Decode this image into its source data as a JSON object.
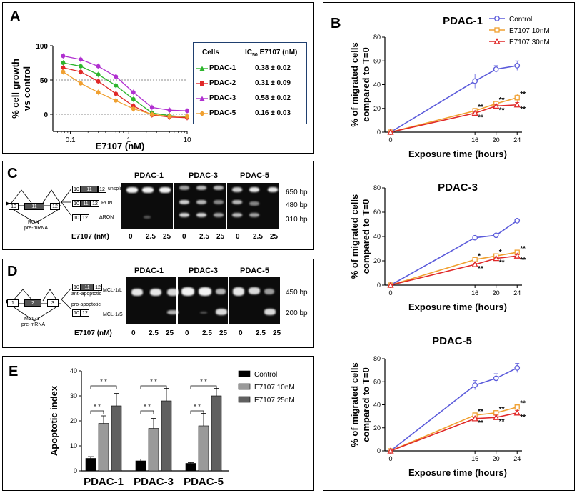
{
  "panels": {
    "A": "A",
    "B": "B",
    "C": "C",
    "D": "D",
    "E": "E"
  },
  "colors": {
    "control": "#5b5bdb",
    "e10": "#f0a030",
    "e30": "#e02828",
    "pdac1": "#2db52d",
    "pdac2": "#e02828",
    "pdac3": "#b030d0",
    "pdac5": "#f0a030",
    "bar_control": "#000000",
    "bar_e10": "#9a9a9a",
    "bar_e25": "#606060"
  },
  "chart_data": [
    {
      "id": "A",
      "type": "line",
      "ylabel": "% cell growth vs control",
      "ylabel_lines": [
        "% cell growth",
        "vs control"
      ],
      "xlabel": "E7107 (nM)",
      "xscale": "log",
      "xlim": [
        0.05,
        10
      ],
      "ylim": [
        -25,
        100
      ],
      "yticks": [
        0,
        50,
        100
      ],
      "xticks": [
        0.1,
        1,
        10
      ],
      "xtick_labels": [
        "0.1",
        "1",
        "10"
      ],
      "ref_lines": [
        0,
        50
      ],
      "x": [
        0.075,
        0.15,
        0.3,
        0.6,
        1.2,
        2.5,
        5,
        10
      ],
      "series": [
        {
          "name": "PDAC-1",
          "values": [
            75,
            70,
            58,
            42,
            22,
            2,
            -2,
            -4
          ]
        },
        {
          "name": "PDAC-2",
          "values": [
            68,
            62,
            48,
            30,
            12,
            -1,
            -4,
            -5
          ]
        },
        {
          "name": "PDAC-3",
          "values": [
            85,
            80,
            70,
            55,
            32,
            10,
            6,
            5
          ]
        },
        {
          "name": "PDAC-5",
          "values": [
            62,
            45,
            32,
            20,
            8,
            0,
            -3,
            -3
          ]
        }
      ],
      "table": {
        "header_cells": "Cells",
        "header_ic": "IC",
        "header_ic_sub": "50",
        "header_ic_rest": " E7107 (nM)",
        "rows": [
          {
            "cell": "PDAC-1",
            "ic50": "0.38 ± 0.02"
          },
          {
            "cell": "PDAC-2",
            "ic50": "0.31 ± 0.09"
          },
          {
            "cell": "PDAC-3",
            "ic50": "0.58 ± 0.02"
          },
          {
            "cell": "PDAC-5",
            "ic50": "0.16 ± 0.03"
          }
        ]
      }
    },
    {
      "id": "B1",
      "type": "line",
      "title": "PDAC-1",
      "ylabel_lines": [
        "% of migrated cells",
        "compared to T=0"
      ],
      "xlabel": "Exposure time (hours)",
      "x": [
        0,
        16,
        20,
        24
      ],
      "xticks": [
        0,
        16,
        20,
        24
      ],
      "ylim": [
        0,
        80
      ],
      "yticks": [
        0,
        20,
        40,
        60,
        80
      ],
      "legend": [
        "Control",
        "E7107 10nM",
        "E7107 30nM"
      ],
      "series": [
        {
          "name": "Control",
          "values": [
            0,
            43,
            53,
            56
          ],
          "err": [
            0,
            6,
            3,
            4
          ]
        },
        {
          "name": "E7107 10nM",
          "values": [
            0,
            18,
            24,
            29
          ],
          "err": [
            0,
            2,
            2,
            3
          ]
        },
        {
          "name": "E7107 30nM",
          "values": [
            0,
            16,
            22,
            23
          ],
          "err": [
            0,
            1,
            1,
            2
          ]
        }
      ],
      "stars": [
        {
          "x": 16,
          "y": 18,
          "label": "**"
        },
        {
          "x": 20,
          "y": 24,
          "label": "**"
        },
        {
          "x": 24,
          "y": 29,
          "label": "**"
        },
        {
          "x": 16,
          "y": 16,
          "label": "**"
        },
        {
          "x": 20,
          "y": 22,
          "label": "**"
        },
        {
          "x": 24,
          "y": 23,
          "label": "**"
        }
      ]
    },
    {
      "id": "B2",
      "type": "line",
      "title": "PDAC-3",
      "ylabel_lines": [
        "% of migrated cells",
        "compared to T=0"
      ],
      "xlabel": "Exposure time (hours)",
      "x": [
        0,
        16,
        20,
        24
      ],
      "xticks": [
        0,
        16,
        20,
        24
      ],
      "ylim": [
        0,
        80
      ],
      "yticks": [
        0,
        20,
        40,
        60,
        80
      ],
      "series": [
        {
          "name": "Control",
          "values": [
            0,
            39,
            41,
            53
          ],
          "err": [
            0,
            1,
            1,
            1
          ]
        },
        {
          "name": "E7107 10nM",
          "values": [
            0,
            21,
            24,
            27
          ],
          "err": [
            0,
            1,
            1,
            1
          ]
        },
        {
          "name": "E7107 30nM",
          "values": [
            0,
            17,
            22,
            24
          ],
          "err": [
            0,
            1,
            1,
            1
          ]
        }
      ],
      "stars": [
        {
          "x": 16,
          "y": 21,
          "label": "*"
        },
        {
          "x": 20,
          "y": 24,
          "label": "*"
        },
        {
          "x": 24,
          "y": 27,
          "label": "**"
        },
        {
          "x": 16,
          "y": 17,
          "label": "**"
        },
        {
          "x": 20,
          "y": 22,
          "label": "**"
        },
        {
          "x": 24,
          "y": 24,
          "label": "**"
        }
      ]
    },
    {
      "id": "B3",
      "type": "line",
      "title": "PDAC-5",
      "ylabel_lines": [
        "% of migrated cells",
        "compared to T=0"
      ],
      "xlabel": "Exposure time (hours)",
      "x": [
        0,
        16,
        20,
        24
      ],
      "xticks": [
        0,
        16,
        20,
        24
      ],
      "ylim": [
        0,
        80
      ],
      "yticks": [
        0,
        20,
        40,
        60,
        80
      ],
      "series": [
        {
          "name": "Control",
          "values": [
            0,
            57,
            63,
            72
          ],
          "err": [
            0,
            4,
            4,
            4
          ]
        },
        {
          "name": "E7107 10nM",
          "values": [
            0,
            31,
            33,
            38
          ],
          "err": [
            0,
            2,
            2,
            2
          ]
        },
        {
          "name": "E7107 30nM",
          "values": [
            0,
            28,
            29,
            33
          ],
          "err": [
            0,
            1,
            2,
            2
          ]
        }
      ],
      "stars": [
        {
          "x": 16,
          "y": 31,
          "label": "**"
        },
        {
          "x": 20,
          "y": 33,
          "label": "**"
        },
        {
          "x": 24,
          "y": 38,
          "label": "**"
        },
        {
          "x": 16,
          "y": 28,
          "label": "**"
        },
        {
          "x": 20,
          "y": 29,
          "label": "**"
        },
        {
          "x": 24,
          "y": 33,
          "label": "**"
        }
      ]
    },
    {
      "id": "E",
      "type": "bar",
      "ylabel": "Apoptotic index",
      "categories": [
        "PDAC-1",
        "PDAC-3",
        "PDAC-5"
      ],
      "ylim": [
        0,
        40
      ],
      "yticks": [
        0,
        10,
        20,
        30,
        40
      ],
      "legend": [
        "Control",
        "E7107 10nM",
        "E7107 25nM"
      ],
      "series": [
        {
          "name": "Control",
          "values": [
            5,
            4,
            3
          ],
          "err": [
            0.7,
            0.7,
            0.3
          ]
        },
        {
          "name": "E7107 10nM",
          "values": [
            19,
            17,
            18
          ],
          "err": [
            3,
            4,
            5
          ]
        },
        {
          "name": "E7107 25nM",
          "values": [
            26,
            28,
            30
          ],
          "err": [
            5,
            5,
            3
          ]
        }
      ],
      "sig_label": "* *"
    }
  ],
  "gel_C": {
    "columns": [
      "PDAC-1",
      "PDAC-3",
      "PDAC-5"
    ],
    "sizes": [
      "650 bp",
      "480 bp",
      "310 bp"
    ],
    "dose_label": "E7107 (nM)",
    "doses": [
      "0",
      "2.5",
      "25",
      "0",
      "2.5",
      "25",
      "0",
      "2.5",
      "25"
    ],
    "isoform_labels": [
      "unsplic.",
      "RON",
      "ΔRON"
    ],
    "pre_label": "RON",
    "pre_label2": "pre-mRNA",
    "exons": {
      "e10": "10",
      "e11": "11",
      "e12": "12"
    }
  },
  "gel_D": {
    "columns": [
      "PDAC-1",
      "PDAC-3",
      "PDAC-5"
    ],
    "sizes": [
      "450 bp",
      "200 bp"
    ],
    "dose_label": "E7107 (nM)",
    "doses": [
      "0",
      "2.5",
      "25",
      "0",
      "2.5",
      "25",
      "0",
      "2.5",
      "25"
    ],
    "isoform_labels": [
      "MCL-1/L",
      "MCL-1/S"
    ],
    "role_labels": [
      "anti-apoptotic",
      "pro-apoptotic"
    ],
    "pre_label": "MCL-1",
    "pre_label2": "pre-mRNA",
    "exons": {
      "e1": "1",
      "e2": "2",
      "e3": "3",
      "e10": "10",
      "e11": "11",
      "e12": "12"
    }
  }
}
